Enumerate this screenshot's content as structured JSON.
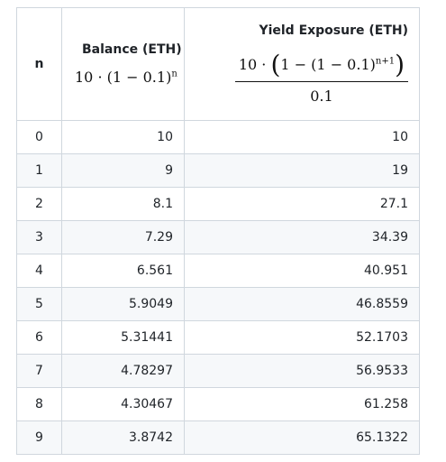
{
  "table": {
    "headers": {
      "n": "n",
      "balance_title": "Balance (ETH)",
      "balance_formula_base": "10 · (1 − 0.1)",
      "balance_formula_exp": "n",
      "yield_title": "Yield Exposure (ETH)",
      "yield_num_prefix": "10 · ",
      "yield_open_paren": "(",
      "yield_num_inner": "1 − (1 − 0.1)",
      "yield_num_exp": "n+1",
      "yield_close_paren": ")",
      "yield_den": "0.1"
    },
    "rows": [
      {
        "n": "0",
        "balance": "10",
        "yield": "10"
      },
      {
        "n": "1",
        "balance": "9",
        "yield": "19"
      },
      {
        "n": "2",
        "balance": "8.1",
        "yield": "27.1"
      },
      {
        "n": "3",
        "balance": "7.29",
        "yield": "34.39"
      },
      {
        "n": "4",
        "balance": "6.561",
        "yield": "40.951"
      },
      {
        "n": "5",
        "balance": "5.9049",
        "yield": "46.8559"
      },
      {
        "n": "6",
        "balance": "5.31441",
        "yield": "52.1703"
      },
      {
        "n": "7",
        "balance": "4.78297",
        "yield": "56.9533"
      },
      {
        "n": "8",
        "balance": "4.30467",
        "yield": "61.258"
      },
      {
        "n": "9",
        "balance": "3.8742",
        "yield": "65.1322"
      }
    ]
  }
}
